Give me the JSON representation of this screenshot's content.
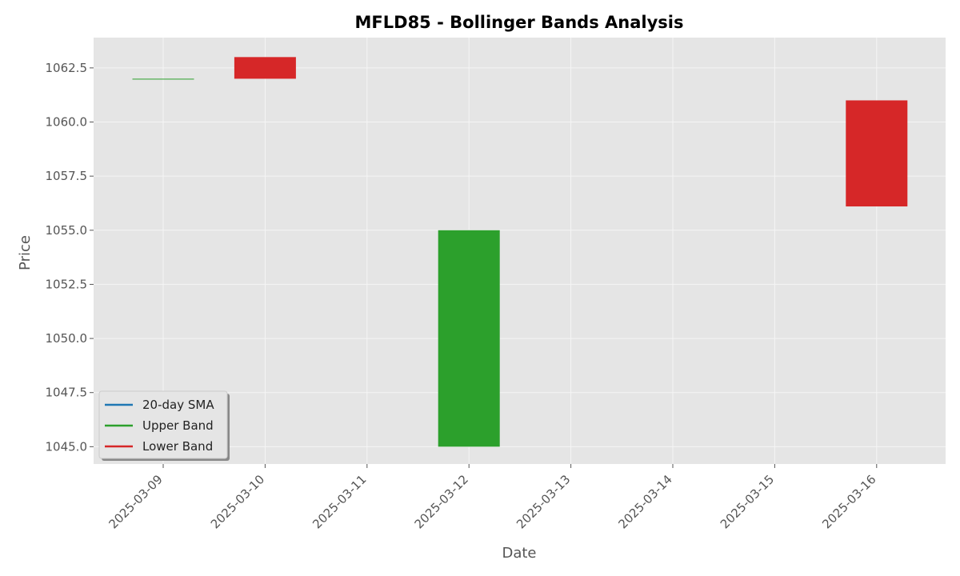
{
  "chart_data": {
    "type": "candlestick",
    "title": "MFLD85 - Bollinger Bands Analysis",
    "xlabel": "Date",
    "ylabel": "Price",
    "categories": [
      "2025-03-09",
      "2025-03-10",
      "2025-03-11",
      "2025-03-12",
      "2025-03-13",
      "2025-03-14",
      "2025-03-15",
      "2025-03-16"
    ],
    "yticks": [
      "1045.0",
      "1047.5",
      "1050.0",
      "1052.5",
      "1055.0",
      "1057.5",
      "1060.0",
      "1062.5"
    ],
    "ylim": [
      1044.2,
      1063.9
    ],
    "grid": true,
    "candles": [
      {
        "date": "2025-03-09",
        "open": 1062.0,
        "close": 1062.0,
        "color": "#2ca02c"
      },
      {
        "date": "2025-03-10",
        "open": 1063.0,
        "close": 1062.0,
        "color": "#d62728"
      },
      {
        "date": "2025-03-12",
        "open": 1045.0,
        "close": 1055.0,
        "color": "#2ca02c"
      },
      {
        "date": "2025-03-16",
        "open": 1061.0,
        "close": 1056.1,
        "color": "#d62728"
      }
    ],
    "legend": {
      "placement": "lower-left",
      "entries": [
        {
          "label": "20-day SMA",
          "color": "#1f77b4"
        },
        {
          "label": "Upper Band",
          "color": "#2ca02c"
        },
        {
          "label": "Lower Band",
          "color": "#d62728"
        }
      ]
    },
    "colors": {
      "plot_background": "#e5e5e5",
      "grid": "#f5f5f5"
    }
  }
}
